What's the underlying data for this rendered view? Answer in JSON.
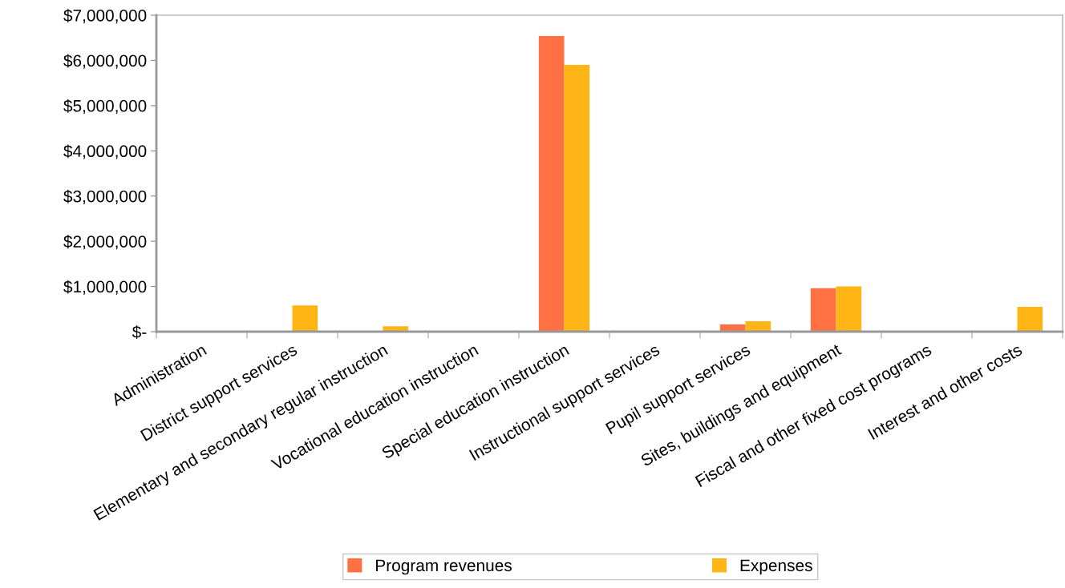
{
  "chart_data": {
    "type": "bar",
    "categories": [
      "Administration",
      "District support services",
      "Elementary and secondary regular instruction",
      "Vocational education instruction",
      "Special education instruction",
      "Instructional support services",
      "Pupil support services",
      "Sites, buildings and equipment",
      "Fiscal and other fixed cost programs",
      "Interest and other costs"
    ],
    "series": [
      {
        "name": "Program revenues",
        "color": "#ff7043",
        "values": [
          0,
          0,
          0,
          0,
          6540000,
          0,
          160000,
          960000,
          0,
          0
        ]
      },
      {
        "name": "Expenses",
        "color": "#ffb515",
        "values": [
          0,
          580000,
          120000,
          0,
          5900000,
          0,
          230000,
          1000000,
          0,
          550000
        ]
      }
    ],
    "ylim": [
      0,
      7000000
    ],
    "yticks": [
      {
        "value": 0,
        "label": "$-"
      },
      {
        "value": 1000000,
        "label": "$1,000,000"
      },
      {
        "value": 2000000,
        "label": "$2,000,000"
      },
      {
        "value": 3000000,
        "label": "$3,000,000"
      },
      {
        "value": 4000000,
        "label": "$4,000,000"
      },
      {
        "value": 5000000,
        "label": "$5,000,000"
      },
      {
        "value": 6000000,
        "label": "$6,000,000"
      },
      {
        "value": 7000000,
        "label": "$7,000,000"
      }
    ],
    "legend": "bottom",
    "grid": false
  }
}
